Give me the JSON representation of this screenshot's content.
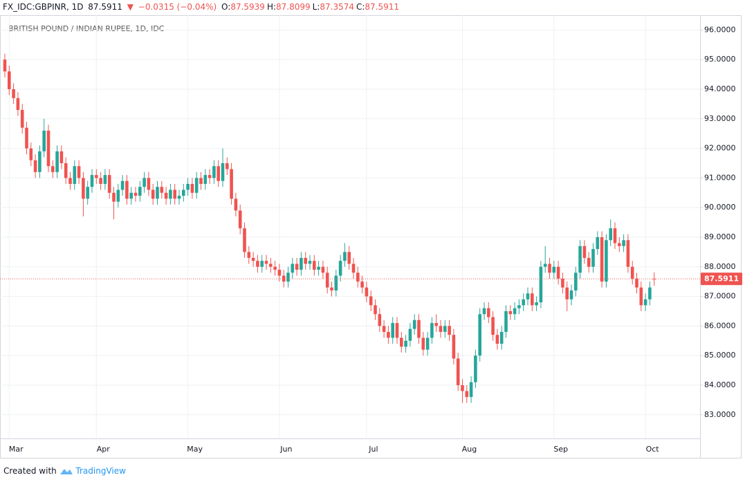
{
  "header": {
    "symbol": "FX_IDC:GBPINR, 1D",
    "last": "87.5911",
    "arrow": "▼",
    "change": "−0.0315 (−0.04%)",
    "ohlc": [
      {
        "label": "O:",
        "value": "87.5939"
      },
      {
        "label": "H:",
        "value": "87.8099"
      },
      {
        "label": "L:",
        "value": "87.3574"
      },
      {
        "label": "C:",
        "value": "87.5911"
      }
    ]
  },
  "footer": {
    "text": "Created with",
    "brand": "TradingView"
  },
  "chart_data": {
    "type": "candlestick",
    "title": "BRITISH POUND / INDIAN RUPEE, 1D, IDC",
    "up_color": "#26a69a",
    "down_color": "#ef5350",
    "grid": true,
    "last_price_line": true,
    "ylim": [
      82.2,
      96.5
    ],
    "yticks": [
      {
        "value": 83,
        "label": "83.0000"
      },
      {
        "value": 84,
        "label": "84.0000"
      },
      {
        "value": 85,
        "label": "85.0000"
      },
      {
        "value": 86,
        "label": "86.0000"
      },
      {
        "value": 87,
        "label": "87.0000"
      },
      {
        "value": 88,
        "label": "88.0000"
      },
      {
        "value": 89,
        "label": "89.0000"
      },
      {
        "value": 90,
        "label": "90.0000"
      },
      {
        "value": 91,
        "label": "91.0000"
      },
      {
        "value": 92,
        "label": "92.0000"
      },
      {
        "value": 93,
        "label": "93.0000"
      },
      {
        "value": 94,
        "label": "94.0000"
      },
      {
        "value": 95,
        "label": "95.0000"
      },
      {
        "value": 96,
        "label": "96.0000"
      }
    ],
    "categories": [
      null,
      "Mar",
      null,
      null,
      null,
      null,
      null,
      null,
      null,
      null,
      null,
      null,
      null,
      null,
      null,
      null,
      null,
      null,
      null,
      null,
      null,
      "Apr",
      null,
      null,
      null,
      null,
      null,
      null,
      null,
      null,
      null,
      null,
      null,
      null,
      null,
      null,
      null,
      null,
      null,
      null,
      null,
      null,
      "May",
      null,
      null,
      null,
      null,
      null,
      null,
      null,
      null,
      null,
      null,
      null,
      null,
      null,
      null,
      null,
      null,
      null,
      null,
      null,
      null,
      "Jun",
      null,
      null,
      null,
      null,
      null,
      null,
      null,
      null,
      null,
      null,
      null,
      null,
      null,
      null,
      null,
      null,
      null,
      null,
      null,
      "Jul",
      null,
      null,
      null,
      null,
      null,
      null,
      null,
      null,
      null,
      null,
      null,
      null,
      null,
      null,
      null,
      null,
      null,
      null,
      null,
      null,
      null,
      "Aug",
      null,
      null,
      null,
      null,
      null,
      null,
      null,
      null,
      null,
      null,
      null,
      null,
      null,
      null,
      null,
      null,
      null,
      null,
      null,
      null,
      "Sep",
      null,
      null,
      null,
      null,
      null,
      null,
      null,
      null,
      null,
      null,
      null,
      null,
      null,
      null,
      null,
      null,
      null,
      null,
      null,
      null,
      "Oct",
      null,
      null
    ],
    "open": [
      95,
      94.6,
      94.0,
      93.7,
      93.3,
      92.7,
      92.0,
      91.6,
      91.2,
      91.9,
      92.6,
      91.4,
      91.2,
      91.9,
      91.5,
      91.0,
      90.8,
      91.4,
      91.0,
      90.3,
      90.7,
      91.1,
      91.0,
      90.8,
      91.1,
      90.5,
      90.2,
      90.6,
      90.9,
      90.3,
      90.5,
      90.4,
      90.7,
      91.0,
      90.6,
      90.3,
      90.7,
      90.5,
      90.3,
      90.6,
      90.3,
      90.4,
      90.6,
      90.8,
      90.5,
      91.0,
      90.8,
      91.1,
      91.0,
      91.4,
      90.9,
      91.5,
      91.3,
      90.3,
      89.9,
      89.3,
      88.5,
      88.3,
      88.2,
      88.0,
      88.2,
      88.1,
      88.0,
      87.9,
      87.7,
      87.5,
      87.8,
      88.1,
      87.9,
      88.3,
      88.1,
      88.2,
      87.9,
      88.0,
      87.8,
      87.3,
      87.2,
      87.7,
      88.2,
      88.5,
      88.1,
      87.8,
      87.5,
      87.3,
      87.0,
      86.7,
      86.4,
      86.0,
      85.8,
      85.6,
      86.1,
      85.6,
      85.3,
      85.5,
      85.9,
      86.2,
      85.6,
      85.2,
      85.6,
      86.1,
      86.0,
      85.8,
      86.0,
      85.7,
      84.9,
      84.0,
      83.8,
      83.6,
      84.1,
      85.0,
      86.4,
      86.6,
      86.3,
      85.7,
      85.4,
      85.8,
      86.5,
      86.4,
      86.6,
      86.7,
      86.9,
      87.1,
      86.7,
      86.8,
      88.0,
      88.1,
      87.8,
      88.0,
      87.6,
      87.3,
      86.9,
      87.2,
      87.8,
      88.7,
      88.3,
      88.0,
      88.6,
      89.0,
      87.5,
      88.9,
      89.3,
      88.8,
      88.7,
      88.9,
      88.0,
      87.6,
      87.3,
      86.7,
      86.9,
      87.5939
    ],
    "high": [
      95.2,
      94.8,
      94.2,
      93.9,
      93.5,
      92.9,
      92.2,
      91.8,
      92.1,
      93.0,
      92.8,
      91.6,
      92.1,
      92.1,
      91.7,
      91.2,
      91.6,
      91.6,
      91.2,
      90.9,
      91.3,
      91.3,
      91.2,
      91.3,
      91.3,
      90.7,
      90.8,
      91.1,
      91.1,
      90.7,
      90.7,
      90.9,
      91.2,
      91.2,
      90.8,
      90.9,
      90.9,
      90.7,
      90.8,
      90.8,
      90.6,
      90.8,
      91.0,
      91.0,
      91.2,
      91.2,
      91.3,
      91.3,
      91.6,
      91.6,
      92.0,
      91.7,
      91.5,
      90.5,
      90.1,
      89.5,
      88.7,
      88.5,
      88.4,
      88.4,
      88.4,
      88.3,
      88.2,
      88.1,
      87.9,
      88.0,
      88.3,
      88.3,
      88.5,
      88.5,
      88.4,
      88.4,
      88.2,
      88.2,
      88.0,
      87.5,
      87.9,
      88.4,
      88.8,
      88.7,
      88.3,
      88.0,
      87.7,
      87.5,
      87.2,
      86.9,
      86.6,
      86.2,
      86.0,
      86.3,
      86.3,
      85.8,
      85.7,
      86.1,
      86.4,
      86.4,
      85.8,
      85.8,
      86.3,
      86.4,
      86.2,
      86.2,
      86.2,
      85.9,
      85.1,
      84.2,
      84.0,
      84.3,
      85.2,
      86.6,
      86.8,
      86.8,
      86.5,
      85.9,
      86.0,
      86.7,
      86.7,
      86.8,
      86.9,
      87.1,
      87.3,
      87.3,
      87.0,
      88.2,
      88.7,
      88.3,
      88.2,
      88.2,
      87.8,
      87.5,
      87.4,
      88.0,
      88.9,
      88.9,
      88.5,
      88.8,
      89.2,
      89.2,
      89.1,
      89.6,
      89.5,
      89.0,
      89.1,
      89.1,
      88.2,
      87.8,
      87.5,
      87.1,
      87.5,
      87.8099
    ],
    "low": [
      94.4,
      93.8,
      93.5,
      93.1,
      92.5,
      91.8,
      91.4,
      91.0,
      91.0,
      91.7,
      91.2,
      91.0,
      91.0,
      91.3,
      90.8,
      90.6,
      90.6,
      90.8,
      89.7,
      90.1,
      90.5,
      90.8,
      90.6,
      90.6,
      90.3,
      89.6,
      90.0,
      90.4,
      90.1,
      90.1,
      90.2,
      90.2,
      90.5,
      90.4,
      90.1,
      90.1,
      90.3,
      90.1,
      90.1,
      90.1,
      90.1,
      90.2,
      90.4,
      90.3,
      90.3,
      90.6,
      90.6,
      90.8,
      90.8,
      90.7,
      90.7,
      91.1,
      90.1,
      89.7,
      89.1,
      88.3,
      88.1,
      88.0,
      87.8,
      87.8,
      87.9,
      87.8,
      87.7,
      87.5,
      87.3,
      87.3,
      87.6,
      87.7,
      87.7,
      87.9,
      87.9,
      87.7,
      87.7,
      87.6,
      87.1,
      87.0,
      87.0,
      87.5,
      88.0,
      87.9,
      87.6,
      87.3,
      87.1,
      86.8,
      86.5,
      86.2,
      85.8,
      85.6,
      85.4,
      85.4,
      85.4,
      85.1,
      85.1,
      85.3,
      85.7,
      85.4,
      85.0,
      85.0,
      85.4,
      85.8,
      85.6,
      85.6,
      85.5,
      84.7,
      83.8,
      83.4,
      83.4,
      83.4,
      83.9,
      84.8,
      86.2,
      86.1,
      85.5,
      85.2,
      85.2,
      85.6,
      86.2,
      86.2,
      86.4,
      86.5,
      86.7,
      86.5,
      86.5,
      86.6,
      87.8,
      87.6,
      87.6,
      87.4,
      87.1,
      86.5,
      86.7,
      87.0,
      87.6,
      88.1,
      87.8,
      87.8,
      88.4,
      87.3,
      87.3,
      88.7,
      88.6,
      88.5,
      88.5,
      87.8,
      87.4,
      87.1,
      86.5,
      86.5,
      86.7,
      87.3574
    ],
    "close": [
      94.6,
      94.0,
      93.7,
      93.3,
      92.7,
      92.0,
      91.6,
      91.2,
      91.9,
      92.6,
      91.4,
      91.2,
      91.9,
      91.5,
      91.0,
      90.8,
      91.4,
      91.0,
      90.3,
      90.7,
      91.1,
      91.0,
      90.8,
      91.1,
      90.5,
      90.2,
      90.6,
      90.9,
      90.3,
      90.5,
      90.4,
      90.7,
      91.0,
      90.6,
      90.3,
      90.7,
      90.5,
      90.3,
      90.6,
      90.3,
      90.4,
      90.6,
      90.8,
      90.5,
      91.0,
      90.8,
      91.1,
      91.0,
      91.4,
      90.9,
      91.5,
      91.3,
      90.3,
      89.9,
      89.3,
      88.5,
      88.3,
      88.2,
      88.0,
      88.2,
      88.1,
      88.0,
      87.9,
      87.7,
      87.5,
      87.8,
      88.1,
      87.9,
      88.3,
      88.1,
      88.2,
      87.9,
      88.0,
      87.8,
      87.3,
      87.2,
      87.7,
      88.2,
      88.5,
      88.1,
      87.8,
      87.5,
      87.3,
      87.0,
      86.7,
      86.4,
      86.0,
      85.8,
      85.6,
      86.1,
      85.6,
      85.3,
      85.5,
      85.9,
      86.2,
      85.6,
      85.2,
      85.6,
      86.1,
      86.0,
      85.8,
      86.0,
      85.7,
      84.9,
      84.0,
      83.8,
      83.6,
      84.1,
      85.0,
      86.4,
      86.6,
      86.3,
      85.7,
      85.4,
      85.8,
      86.5,
      86.4,
      86.6,
      86.7,
      86.9,
      87.1,
      86.7,
      86.8,
      88.0,
      88.1,
      87.8,
      88.0,
      87.6,
      87.3,
      86.9,
      87.2,
      87.8,
      88.7,
      88.3,
      88.0,
      88.6,
      89.0,
      87.5,
      88.9,
      89.3,
      88.8,
      88.7,
      88.9,
      88.0,
      87.6,
      87.3,
      86.7,
      86.9,
      87.3,
      87.5911
    ]
  }
}
